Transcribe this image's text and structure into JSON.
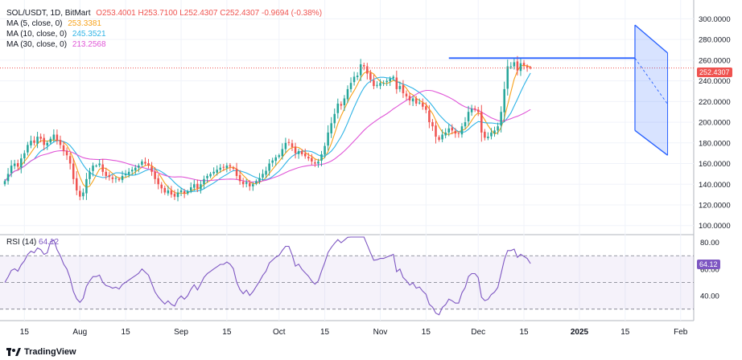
{
  "legend": {
    "symbol": "SOL/USDT, 1D, BitMart",
    "ohlc": "O253.4001 H253.7100 L252.4307 C252.4307 -0.9694 (-0.38%)",
    "ma5_label": "MA (5, close, 0)",
    "ma5_value": "253.3381",
    "ma10_label": "MA (10, close, 0)",
    "ma10_value": "245.3521",
    "ma30_label": "MA (30, close, 0)",
    "ma30_value": "213.2568",
    "rsi_label": "RSI (14)",
    "rsi_value": "64.12"
  },
  "branding": {
    "name": "TradingView"
  },
  "colors": {
    "up": "#26a69a",
    "down": "#ef5350",
    "ma5": "#f7a21b",
    "ma10": "#2fb4e6",
    "ma30": "#e056d7",
    "rsi": "#7e57c2",
    "trendline": "#2962ff"
  },
  "chart_data": [
    {
      "type": "candlestick",
      "title": "SOL/USDT, 1D, BitMart",
      "y_axis_ticks": [
        "100.0000",
        "120.0000",
        "140.0000",
        "160.0000",
        "180.0000",
        "200.0000",
        "220.0000",
        "240.0000",
        "260.0000",
        "280.0000",
        "300.0000"
      ],
      "ylim": [
        92,
        312
      ],
      "x_axis_ticks": [
        "15",
        "Aug",
        "15",
        "Sep",
        "15",
        "Oct",
        "15",
        "Nov",
        "15",
        "Dec",
        "15",
        "2025",
        "15",
        "Feb"
      ],
      "x_range": [
        "2024-07-09",
        "2025-02-05"
      ],
      "last_price": 252.4307,
      "close_series": {
        "start_date": "2024-07-09",
        "frequency": "1D",
        "values": [
          143,
          150,
          158,
          160,
          157,
          165,
          170,
          178,
          182,
          180,
          186,
          184,
          178,
          180,
          184,
          188,
          182,
          178,
          172,
          168,
          160,
          145,
          134,
          128,
          132,
          145,
          152,
          158,
          158,
          160,
          152,
          148,
          147,
          145,
          146,
          144,
          148,
          150,
          152,
          154,
          156,
          158,
          162,
          160,
          158,
          152,
          145,
          140,
          136,
          132,
          134,
          130,
          128,
          132,
          134,
          131,
          133,
          137,
          140,
          136,
          140,
          145,
          148,
          150,
          152,
          154,
          156,
          156,
          158,
          157,
          155,
          148,
          143,
          140,
          142,
          138,
          140,
          143,
          146,
          150,
          153,
          160,
          163,
          166,
          168,
          174,
          180,
          180,
          176,
          170,
          172,
          169,
          167,
          165,
          162,
          160,
          162,
          169,
          177,
          190,
          199,
          208,
          218,
          216,
          223,
          232,
          238,
          244,
          245,
          256,
          254,
          247,
          241,
          235,
          236,
          238,
          238,
          240,
          242,
          244,
          232,
          235,
          228,
          225,
          221,
          223,
          218,
          219,
          215,
          212,
          200,
          196,
          186,
          183,
          188,
          190,
          194,
          192,
          189,
          189,
          196,
          200,
          210,
          213,
          213,
          210,
          190,
          185,
          186,
          190,
          192,
          196,
          210,
          232,
          254,
          254,
          258,
          250,
          257,
          255,
          253,
          252.43
        ]
      },
      "moving_averages": [
        {
          "name": "MA (5, close, 0)",
          "last": 253.3381
        },
        {
          "name": "MA (10, close, 0)",
          "last": 245.3521
        },
        {
          "name": "MA (30, close, 0)",
          "last": 213.2568
        }
      ],
      "annotations": {
        "horizontal_resistance": {
          "from": "2024-11-22",
          "to": "2025-01-18",
          "value": 262
        },
        "triangle": {
          "apex": "2025-01-18",
          "high": 294,
          "low": 192,
          "right_date": "2025-01-28",
          "right_upper": 267,
          "right_lower": 168
        }
      }
    },
    {
      "type": "line",
      "title": "RSI (14)",
      "y_axis_ticks": [
        "40.00",
        "60.00",
        "80.00"
      ],
      "ylim": [
        22,
        84
      ],
      "levels": [
        30,
        50,
        70
      ],
      "last_value": 64.12
    }
  ]
}
